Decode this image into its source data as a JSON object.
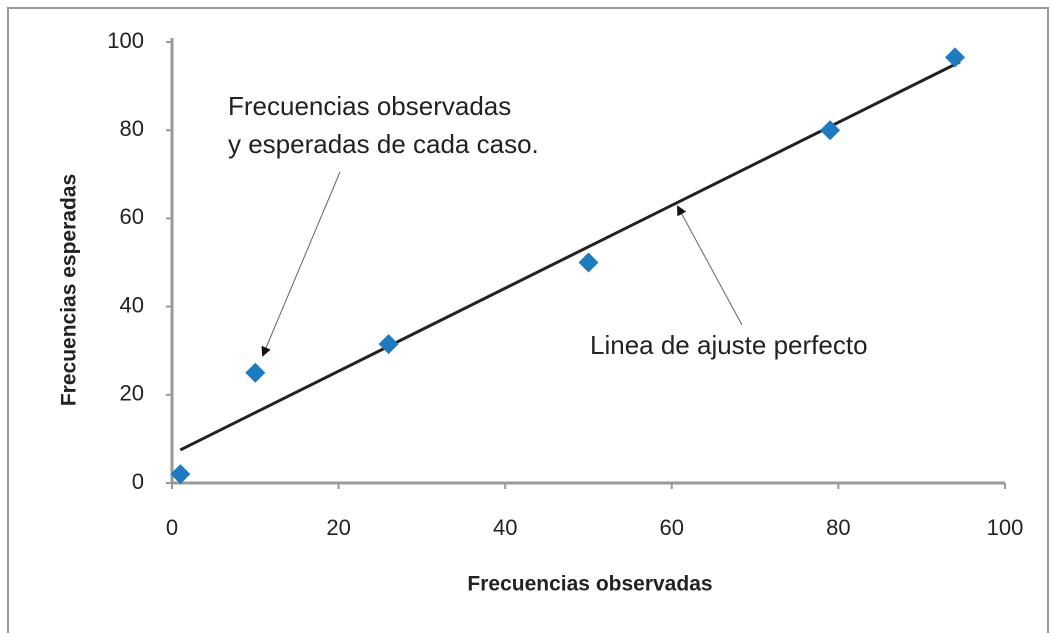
{
  "chart_data": {
    "type": "scatter",
    "x_label": "Frecuencias observadas",
    "y_label": "Frecuencias esperadas",
    "annotations": [
      "Frecuencias observadas",
      "y esperadas de cada caso.",
      "Linea de ajuste perfecto"
    ],
    "x": [
      1,
      10,
      26,
      50,
      79,
      94
    ],
    "values": [
      2,
      25,
      31.5,
      50,
      80,
      96.5
    ],
    "color": "#1f7bc0",
    "trend": {
      "x": [
        1,
        94.6
      ],
      "values": [
        7.5,
        95.5
      ],
      "color": "#222222"
    },
    "xlim": [
      0,
      100
    ],
    "xticks": [
      0,
      20,
      40,
      60,
      80,
      100
    ],
    "ylim": [
      0,
      100
    ],
    "yticks": [
      0,
      20,
      40,
      60,
      80,
      100
    ],
    "grid": false
  }
}
